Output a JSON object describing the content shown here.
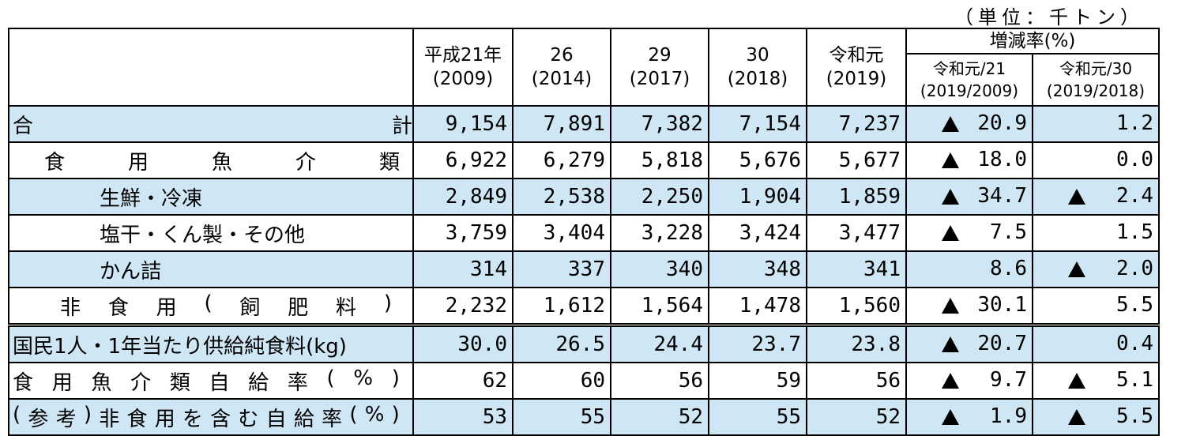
{
  "unit_note": "（単位：千トン）",
  "header": {
    "cols": [
      {
        "line1": "平成21年",
        "line2": "(2009)"
      },
      {
        "line1": "26",
        "line2": "(2014)"
      },
      {
        "line1": "29",
        "line2": "(2017)"
      },
      {
        "line1": "30",
        "line2": "(2018)"
      },
      {
        "line1": "令和元",
        "line2": "(2019)"
      }
    ],
    "change_title": "増減率(%)",
    "change_cols": [
      {
        "line1": "令和元/21",
        "line2": "(2019/2009)"
      },
      {
        "line1": "令和元/30",
        "line2": "(2019/2018)"
      }
    ]
  },
  "rows": [
    {
      "label_left": "合",
      "label_right": "計",
      "values": [
        "9,154",
        "7,891",
        "7,382",
        "7,154",
        "7,237"
      ],
      "chg1": {
        "neg": true,
        "v": "20.9"
      },
      "chg2": {
        "neg": false,
        "v": "1.2"
      }
    },
    {
      "label_chars": [
        "食",
        "用",
        "魚",
        "介",
        "類"
      ],
      "values": [
        "6,922",
        "6,279",
        "5,818",
        "5,676",
        "5,677"
      ],
      "chg1": {
        "neg": true,
        "v": "18.0"
      },
      "chg2": {
        "neg": false,
        "v": "0.0"
      }
    },
    {
      "label": "生鮮・冷凍",
      "values": [
        "2,849",
        "2,538",
        "2,250",
        "1,904",
        "1,859"
      ],
      "chg1": {
        "neg": true,
        "v": "34.7"
      },
      "chg2": {
        "neg": true,
        "v": "2.4"
      }
    },
    {
      "label": "塩干・くん製・その他",
      "values": [
        "3,759",
        "3,404",
        "3,228",
        "3,424",
        "3,477"
      ],
      "chg1": {
        "neg": true,
        "v": "7.5"
      },
      "chg2": {
        "neg": false,
        "v": "1.5"
      }
    },
    {
      "label": "かん詰",
      "values": [
        "314",
        "337",
        "340",
        "348",
        "341"
      ],
      "chg1": {
        "neg": false,
        "v": "8.6"
      },
      "chg2": {
        "neg": true,
        "v": "2.0"
      }
    },
    {
      "label_chars": [
        "非",
        "食",
        "用",
        "(",
        "飼",
        "肥",
        "料",
        ")"
      ],
      "values": [
        "2,232",
        "1,612",
        "1,564",
        "1,478",
        "1,560"
      ],
      "chg1": {
        "neg": true,
        "v": "30.1"
      },
      "chg2": {
        "neg": false,
        "v": "5.5"
      }
    },
    {
      "label": "国民1人・1年当たり供給純食料(kg)",
      "values": [
        "30.0",
        "26.5",
        "24.4",
        "23.7",
        "23.8"
      ],
      "chg1": {
        "neg": true,
        "v": "20.7"
      },
      "chg2": {
        "neg": false,
        "v": "0.4"
      }
    },
    {
      "label_chars": [
        "食",
        "用",
        "魚",
        "介",
        "類",
        "自",
        "給",
        "率",
        "(",
        "%",
        ")"
      ],
      "values": [
        "62",
        "60",
        "56",
        "59",
        "56"
      ],
      "chg1": {
        "neg": true,
        "v": "9.7"
      },
      "chg2": {
        "neg": true,
        "v": "5.1"
      }
    },
    {
      "label_chars": [
        "(",
        "参",
        "考",
        ")",
        "非",
        "食",
        "用",
        "を",
        "含",
        "む",
        "自",
        "給",
        "率",
        "(",
        "%",
        ")"
      ],
      "values": [
        "53",
        "55",
        "52",
        "55",
        "52"
      ],
      "chg1": {
        "neg": true,
        "v": "1.9"
      },
      "chg2": {
        "neg": true,
        "v": "5.5"
      }
    }
  ]
}
